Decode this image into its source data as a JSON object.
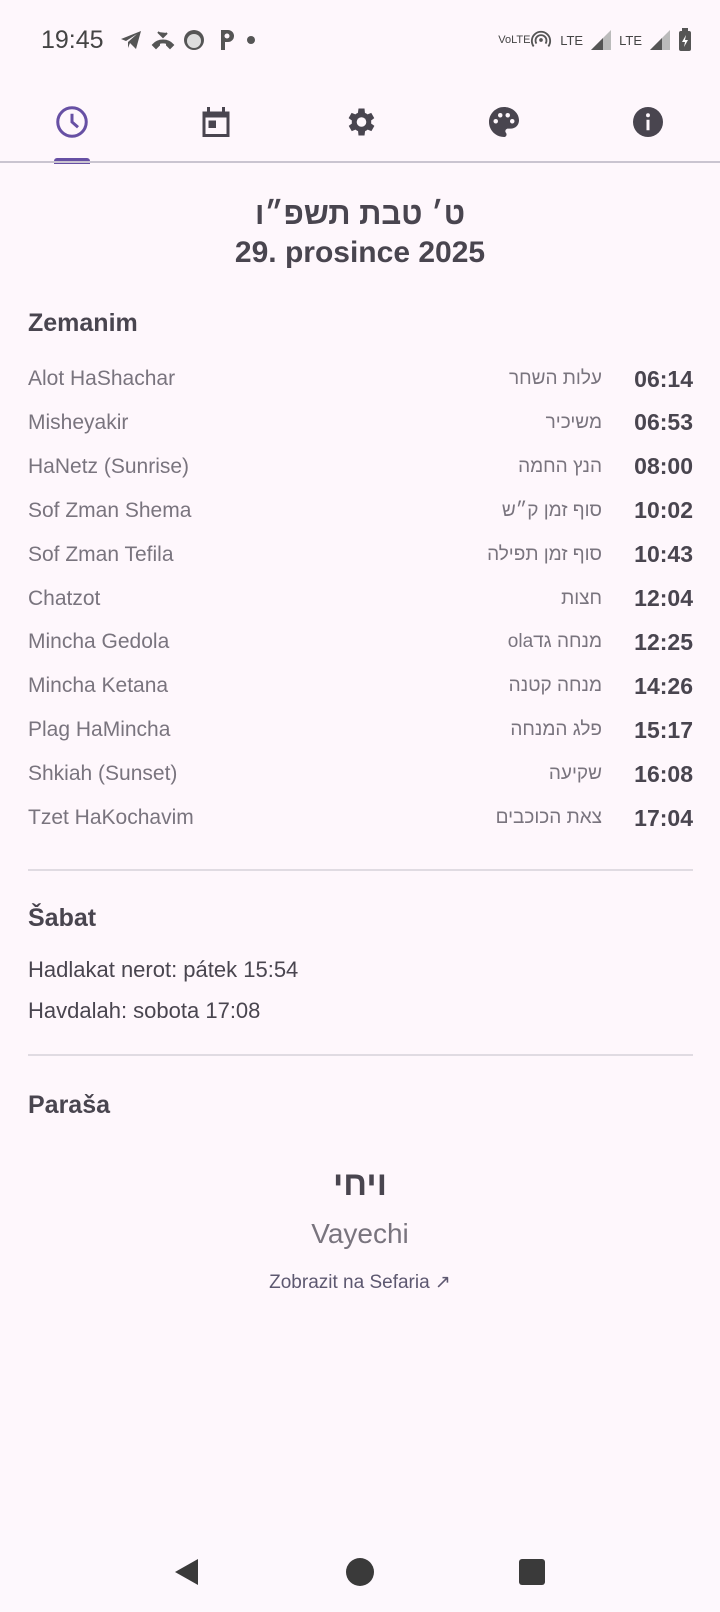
{
  "status_bar": {
    "time": "19:45",
    "right_labels": [
      "VoLTE",
      "LTE",
      "LTE"
    ],
    "icons": [
      "telegram-icon",
      "missed-call-icon",
      "face-icon",
      "p-app-icon",
      "dot-icon",
      "hotspot-icon",
      "signal-icon",
      "battery-charging-icon"
    ]
  },
  "tabs": [
    {
      "name": "times",
      "icon": "clock-icon",
      "active": true
    },
    {
      "name": "calendar",
      "icon": "calendar-icon"
    },
    {
      "name": "settings",
      "icon": "gear-icon"
    },
    {
      "name": "theme",
      "icon": "palette-icon"
    },
    {
      "name": "info",
      "icon": "info-icon"
    }
  ],
  "accent": "#6750a4",
  "date": {
    "hebrew": "ט׳ טבת תשפ״ו",
    "gregorian": "29. prosince 2025"
  },
  "zemanim": {
    "title": "Zemanim",
    "rows": [
      {
        "en": "Alot HaShachar",
        "he": "עלות השחר",
        "time": "06:14"
      },
      {
        "en": "Misheyakir",
        "he": "משיכיר",
        "time": "06:53"
      },
      {
        "en": "HaNetz (Sunrise)",
        "he": "הנץ החמה",
        "time": "08:00"
      },
      {
        "en": "Sof Zman Shema",
        "he": "סוף זמן ק״ש",
        "time": "10:02"
      },
      {
        "en": "Sof Zman Tefila",
        "he": "סוף זמן תפילה",
        "time": "10:43"
      },
      {
        "en": "Chatzot",
        "he": "חצות",
        "time": "12:04"
      },
      {
        "en": "Mincha Gedola",
        "he": "מנחה גדola",
        "time": "12:25"
      },
      {
        "en": "Mincha Ketana",
        "he": "מנחה קטנה",
        "time": "14:26"
      },
      {
        "en": "Plag HaMincha",
        "he": "פלג המנחה",
        "time": "15:17"
      },
      {
        "en": "Shkiah (Sunset)",
        "he": "שקיעה",
        "time": "16:08"
      },
      {
        "en": "Tzet HaKochavim",
        "he": "צאת הכוכבים",
        "time": "17:04"
      }
    ]
  },
  "shabbat": {
    "title": "Šabat",
    "candle": "Hadlakat nerot: pátek 15:54",
    "havdalah": "Havdalah: sobota 17:08"
  },
  "parasha": {
    "title": "Paraša",
    "hebrew": "ויחי",
    "name": "Vayechi",
    "link": "Zobrazit na Sefaria ↗"
  }
}
